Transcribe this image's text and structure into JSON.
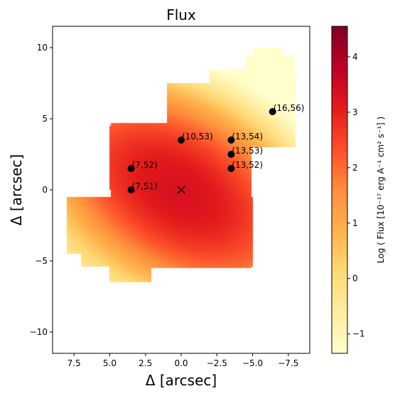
{
  "chart_data": {
    "type": "heatmap",
    "title": "Flux",
    "xlabel": "Δ  [arcsec]",
    "ylabel": "Δ  [arcsec]",
    "xlim": [
      9,
      -9
    ],
    "ylim": [
      -11.5,
      11.5
    ],
    "x_ticks": [
      {
        "v": 7.5,
        "label": "7.5"
      },
      {
        "v": 5.0,
        "label": "5.0"
      },
      {
        "v": 2.5,
        "label": "2.5"
      },
      {
        "v": 0.0,
        "label": "0.0"
      },
      {
        "v": -2.5,
        "label": "−2.5"
      },
      {
        "v": -5.0,
        "label": "−5.0"
      },
      {
        "v": -7.5,
        "label": "−7.5"
      }
    ],
    "y_ticks": [
      {
        "v": 10,
        "label": "10"
      },
      {
        "v": 5,
        "label": "5"
      },
      {
        "v": 0,
        "label": "0"
      },
      {
        "v": -5,
        "label": "−5"
      },
      {
        "v": -10,
        "label": "−10"
      }
    ],
    "colorbar": {
      "label": "Log ( Flux [10⁻¹⁷ erg A⁻¹ cm² s⁻¹] )",
      "range": [
        -1.35,
        4.55
      ],
      "ticks": [
        {
          "v": 4,
          "label": "4"
        },
        {
          "v": 3,
          "label": "3"
        },
        {
          "v": 2,
          "label": "2"
        },
        {
          "v": 1,
          "label": "1"
        },
        {
          "v": 0,
          "label": "0"
        },
        {
          "v": -1,
          "label": "−1"
        }
      ]
    },
    "spaxel_regions": [
      {
        "x": [
          -4.9,
          4.9
        ],
        "y": [
          -5.5,
          4.7
        ]
      },
      {
        "x": [
          -5,
          8
        ],
        "y": [
          -4.5,
          -0.5
        ]
      },
      {
        "x": [
          -5,
          7
        ],
        "y": [
          -5.4,
          -0.5
        ]
      },
      {
        "x": [
          2.1,
          5
        ],
        "y": [
          -6.5,
          -2
        ]
      },
      {
        "x": [
          -2,
          3.5
        ],
        "y": [
          -5.5,
          -2
        ]
      },
      {
        "x": [
          -0.8,
          1.5
        ],
        "y": [
          -3.5,
          -1
        ]
      },
      {
        "x": [
          -1.9,
          1.1
        ],
        "y": [
          -2.8,
          -1
        ]
      },
      {
        "x": [
          -3.5,
          1
        ],
        "y": [
          -2.5,
          -0.5
        ]
      },
      {
        "x": [
          -4.8,
          5
        ],
        "y": [
          0,
          4.5
        ]
      },
      {
        "x": [
          -4.9,
          1
        ],
        "y": [
          3,
          7.5
        ]
      },
      {
        "x": [
          -8,
          1
        ],
        "y": [
          4.5,
          7.5
        ]
      },
      {
        "x": [
          -8,
          -2
        ],
        "y": [
          3,
          8.5
        ]
      },
      {
        "x": [
          -7.9,
          -4
        ],
        "y": [
          4.5,
          8.5
        ]
      },
      {
        "x": [
          -7.9,
          -4.5
        ],
        "y": [
          8,
          9.5
        ]
      },
      {
        "x": [
          -7,
          -5
        ],
        "y": [
          8,
          10
        ]
      }
    ],
    "flux_components": [
      {
        "x": 0.2,
        "y": -0.1,
        "peak": 3.3,
        "sx": 3.0,
        "sy": 1.8,
        "angle": 32
      },
      {
        "x": 1.5,
        "y": -0.2,
        "peak": 1.0,
        "sx": 3.3,
        "sy": 2.7,
        "angle": 0
      }
    ],
    "points": [
      {
        "x": 0.0,
        "y": 3.5,
        "label": "(10,53)"
      },
      {
        "x": -3.5,
        "y": 3.5,
        "label": "(13,54)"
      },
      {
        "x": -3.5,
        "y": 2.5,
        "label": "(13,53)"
      },
      {
        "x": -3.5,
        "y": 1.5,
        "label": "(13,52)"
      },
      {
        "x": 3.5,
        "y": 1.5,
        "label": "(7,52)"
      },
      {
        "x": 3.5,
        "y": 0.0,
        "label": "(7,51)"
      },
      {
        "x": -6.4,
        "y": 5.5,
        "label": "(16,56)"
      }
    ],
    "center_marker": {
      "x": 0,
      "y": 0,
      "symbol": "x"
    },
    "colormap": "YlOrRd"
  }
}
